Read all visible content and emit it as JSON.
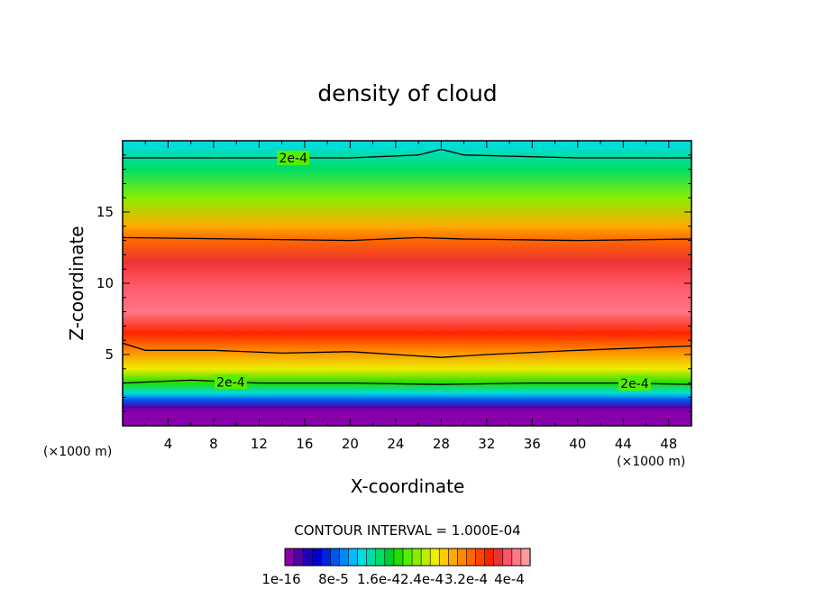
{
  "chart_data": {
    "type": "heatmap",
    "title": "density of cloud",
    "xlabel": "X-coordinate",
    "ylabel": "Z-coordinate",
    "x_unit": "(×1000 m)",
    "y_unit": "(×1000 m)",
    "xlim": [
      0,
      50
    ],
    "ylim": [
      0,
      20
    ],
    "x_ticks": [
      4,
      8,
      12,
      16,
      20,
      24,
      28,
      32,
      36,
      40,
      44,
      48
    ],
    "y_ticks": [
      5,
      10,
      15
    ],
    "contour_interval_text": "CONTOUR INTERVAL = 1.000E-04",
    "contour_labels": [
      "2e-4",
      "2e-4",
      "2e-4"
    ],
    "colorbar_labels": [
      "1e-16",
      "8e-5",
      "1.6e-4",
      "2.4e-4",
      "3.2e-4",
      "4e-4"
    ],
    "colorbar_colors": [
      "#8800aa",
      "#5500aa",
      "#2200bb",
      "#0000cc",
      "#0022dd",
      "#0055ee",
      "#0088ff",
      "#00bbff",
      "#00dddd",
      "#00ddaa",
      "#00dd66",
      "#00cc33",
      "#22dd00",
      "#55ee00",
      "#88ee00",
      "#bbee00",
      "#eeee00",
      "#ffcc00",
      "#ffaa00",
      "#ff8800",
      "#ff6600",
      "#ff4400",
      "#ff2200",
      "#ee3333",
      "#ff5566",
      "#ff7788",
      "#ff9999"
    ],
    "profile": [
      {
        "z": 19.7,
        "value": 0.00013
      },
      {
        "z": 18.0,
        "value": 0.00016
      },
      {
        "z": 16.0,
        "value": 0.00022
      },
      {
        "z": 14.0,
        "value": 0.00028
      },
      {
        "z": 13.0,
        "value": 0.00031
      },
      {
        "z": 11.5,
        "value": 0.00035
      },
      {
        "z": 10.0,
        "value": 0.000375
      },
      {
        "z": 8.0,
        "value": 0.000385
      },
      {
        "z": 6.5,
        "value": 0.00034
      },
      {
        "z": 5.3,
        "value": 0.0003
      },
      {
        "z": 4.0,
        "value": 0.00024
      },
      {
        "z": 3.0,
        "value": 0.00018
      },
      {
        "z": 2.3,
        "value": 0.00012
      },
      {
        "z": 1.8,
        "value": 7e-05
      },
      {
        "z": 1.3,
        "value": 2e-05
      },
      {
        "z": 1.0,
        "value": 0.0
      },
      {
        "z": 0.0,
        "value": 0.0
      }
    ],
    "contours": [
      {
        "level": "2e-4",
        "points": [
          [
            0,
            18.8
          ],
          [
            10,
            18.8
          ],
          [
            20,
            18.8
          ],
          [
            26,
            19.0
          ],
          [
            28,
            19.4
          ],
          [
            30,
            19.0
          ],
          [
            40,
            18.8
          ],
          [
            50,
            18.8
          ]
        ]
      },
      {
        "level": "3e-4",
        "points": [
          [
            0,
            13.2
          ],
          [
            10,
            13.1
          ],
          [
            20,
            13.0
          ],
          [
            26,
            13.2
          ],
          [
            30,
            13.1
          ],
          [
            40,
            13.0
          ],
          [
            50,
            13.1
          ]
        ]
      },
      {
        "level": "3e-4",
        "points": [
          [
            0,
            5.8
          ],
          [
            2,
            5.3
          ],
          [
            8,
            5.3
          ],
          [
            14,
            5.1
          ],
          [
            20,
            5.2
          ],
          [
            24,
            5.0
          ],
          [
            28,
            4.8
          ],
          [
            32,
            5.0
          ],
          [
            40,
            5.3
          ],
          [
            50,
            5.6
          ]
        ]
      },
      {
        "level": "2e-4",
        "points": [
          [
            0,
            3.0
          ],
          [
            6,
            3.2
          ],
          [
            12,
            3.0
          ],
          [
            20,
            3.0
          ],
          [
            28,
            2.9
          ],
          [
            36,
            3.0
          ],
          [
            44,
            3.0
          ],
          [
            50,
            2.9
          ]
        ]
      }
    ]
  }
}
